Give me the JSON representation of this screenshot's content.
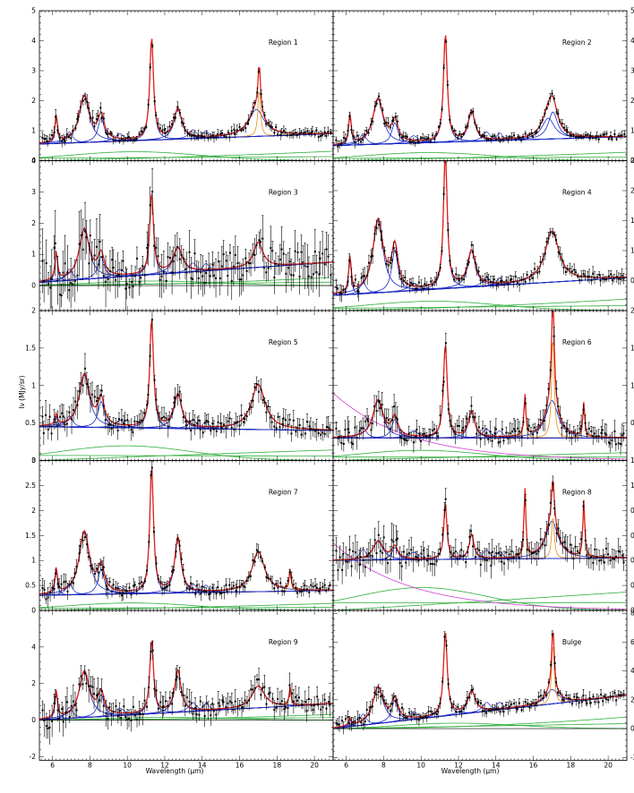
{
  "figure": {
    "xlabel": "Wavelength  (μm)",
    "ylabel": "Iν (MJy/sr)",
    "colors": {
      "data": "#000000",
      "total_fit": "#e0201b",
      "pah_features": "#1a28c8",
      "lines": "#e88a1a",
      "dust_continuum": "#2fae3a",
      "stellar": "#d23fd2"
    }
  },
  "chart_data": [
    {
      "type": "line",
      "title": "Region 1",
      "xlim": [
        5.3,
        21
      ],
      "ylim": [
        0,
        5
      ],
      "xticks": [
        6,
        8,
        10,
        12,
        14,
        16,
        18,
        20
      ],
      "yticks": [
        0,
        1,
        2,
        3,
        4,
        5
      ],
      "ytick_side": "left",
      "continuum": 0.55,
      "cont_slope": 0.35,
      "noise": 0.12,
      "features": [
        [
          6.2,
          0.9,
          0.08
        ],
        [
          7.7,
          1.55,
          0.33
        ],
        [
          8.6,
          0.8,
          0.2
        ],
        [
          11.3,
          3.4,
          0.12
        ],
        [
          12.7,
          1.0,
          0.25
        ],
        [
          16.9,
          0.9,
          0.5
        ],
        [
          17.05,
          1.6,
          0.08
        ]
      ]
    },
    {
      "type": "line",
      "title": "Region 2",
      "xlim": [
        5.3,
        21
      ],
      "ylim": [
        0,
        5
      ],
      "xticks": [
        6,
        8,
        10,
        12,
        14,
        16,
        18,
        20
      ],
      "yticks": [
        0,
        1,
        2,
        3,
        4,
        5
      ],
      "ytick_side": "right",
      "continuum": 0.5,
      "cont_slope": 0.3,
      "noise": 0.1,
      "features": [
        [
          6.2,
          1.0,
          0.08
        ],
        [
          7.7,
          1.5,
          0.33
        ],
        [
          8.6,
          0.7,
          0.2
        ],
        [
          11.3,
          3.6,
          0.12
        ],
        [
          12.7,
          1.0,
          0.22
        ],
        [
          16.8,
          0.7,
          0.4
        ],
        [
          17.05,
          0.9,
          0.3
        ]
      ]
    },
    {
      "type": "line",
      "title": "Region 3",
      "xlim": [
        5.3,
        21
      ],
      "ylim": [
        -0.8,
        4
      ],
      "xticks": [
        6,
        8,
        10,
        12,
        14,
        16,
        18,
        20
      ],
      "yticks": [
        0,
        1,
        2,
        3,
        4
      ],
      "ytick_side": "left",
      "continuum": 0.1,
      "cont_slope": 0.65,
      "noise": 0.5,
      "features": [
        [
          6.2,
          0.9,
          0.08
        ],
        [
          7.7,
          1.6,
          0.33
        ],
        [
          8.6,
          0.7,
          0.2
        ],
        [
          11.3,
          2.6,
          0.12
        ],
        [
          12.7,
          0.8,
          0.3
        ],
        [
          17.0,
          0.8,
          0.3
        ]
      ]
    },
    {
      "type": "line",
      "title": "Region 4",
      "xlim": [
        5.3,
        21
      ],
      "ylim": [
        0,
        2.5
      ],
      "xticks": [
        6,
        8,
        10,
        12,
        14,
        16,
        18,
        20
      ],
      "yticks": [
        0.5,
        1.0,
        1.5,
        2.0,
        2.5
      ],
      "ytick_side": "right",
      "continuum": 0.25,
      "cont_slope": 0.3,
      "noise": 0.08,
      "features": [
        [
          6.2,
          0.6,
          0.08
        ],
        [
          7.7,
          1.2,
          0.33
        ],
        [
          8.6,
          0.7,
          0.2
        ],
        [
          11.3,
          2.25,
          0.12
        ],
        [
          12.7,
          0.6,
          0.25
        ],
        [
          17.0,
          0.85,
          0.45
        ]
      ]
    },
    {
      "type": "line",
      "title": "Region 5",
      "xlim": [
        5.3,
        21
      ],
      "ylim": [
        0,
        2.0
      ],
      "xticks": [
        6,
        8,
        10,
        12,
        14,
        16,
        18,
        20
      ],
      "yticks": [
        0,
        0.5,
        1.0,
        1.5,
        2.0
      ],
      "ytick_side": "left",
      "continuum": 0.45,
      "cont_slope": -0.05,
      "noise": 0.1,
      "features": [
        [
          6.2,
          0.15,
          0.08
        ],
        [
          7.7,
          0.7,
          0.33
        ],
        [
          8.6,
          0.35,
          0.2
        ],
        [
          11.3,
          1.45,
          0.12
        ],
        [
          12.7,
          0.45,
          0.25
        ],
        [
          17.0,
          0.6,
          0.45
        ]
      ]
    },
    {
      "type": "line",
      "title": "Region 6",
      "xlim": [
        5.3,
        21
      ],
      "ylim": [
        0,
        2.0
      ],
      "xticks": [
        6,
        8,
        10,
        12,
        14,
        16,
        18,
        20
      ],
      "yticks": [
        0.5,
        1.0,
        1.5,
        2.0
      ],
      "ytick_side": "right",
      "continuum": 0.3,
      "cont_slope": 0.0,
      "noise": 0.1,
      "features": [
        [
          7.7,
          0.5,
          0.33
        ],
        [
          8.6,
          0.25,
          0.2
        ],
        [
          11.3,
          1.25,
          0.12
        ],
        [
          12.7,
          0.35,
          0.2
        ],
        [
          15.55,
          0.55,
          0.06
        ],
        [
          17.0,
          0.5,
          0.4
        ],
        [
          17.05,
          1.4,
          0.08
        ],
        [
          18.7,
          0.45,
          0.06
        ]
      ]
    },
    {
      "type": "line",
      "title": "Region 7",
      "xlim": [
        5.3,
        21
      ],
      "ylim": [
        0,
        3.0
      ],
      "xticks": [
        6,
        8,
        10,
        12,
        14,
        16,
        18,
        20
      ],
      "yticks": [
        0,
        0.5,
        1.0,
        1.5,
        2.0,
        2.5,
        3.0
      ],
      "ytick_side": "left",
      "continuum": 0.3,
      "cont_slope": 0.1,
      "noise": 0.1,
      "features": [
        [
          6.2,
          0.5,
          0.08
        ],
        [
          7.7,
          1.25,
          0.33
        ],
        [
          8.6,
          0.5,
          0.2
        ],
        [
          11.3,
          2.5,
          0.12
        ],
        [
          12.7,
          1.1,
          0.2
        ],
        [
          17.0,
          0.8,
          0.4
        ],
        [
          18.7,
          0.4,
          0.06
        ]
      ]
    },
    {
      "type": "line",
      "title": "Region 8",
      "xlim": [
        5.3,
        21
      ],
      "ylim": [
        0,
        1.2
      ],
      "xticks": [
        6,
        8,
        10,
        12,
        14,
        16,
        18,
        20
      ],
      "yticks": [
        0,
        0.2,
        0.4,
        0.6,
        0.8,
        1.0,
        1.2
      ],
      "ytick_side": "right",
      "continuum": 0.4,
      "cont_slope": 0.02,
      "noise": 0.07,
      "features": [
        [
          7.7,
          0.15,
          0.33
        ],
        [
          8.6,
          0.1,
          0.2
        ],
        [
          11.3,
          0.45,
          0.1
        ],
        [
          12.7,
          0.2,
          0.15
        ],
        [
          15.55,
          0.55,
          0.06
        ],
        [
          17.0,
          0.3,
          0.4
        ],
        [
          17.05,
          0.35,
          0.08
        ],
        [
          18.7,
          0.45,
          0.06
        ]
      ]
    },
    {
      "type": "line",
      "title": "Region 9",
      "xlim": [
        5.3,
        21
      ],
      "ylim": [
        -2.2,
        6
      ],
      "xticks": [
        6,
        8,
        10,
        12,
        14,
        16,
        18,
        20
      ],
      "yticks": [
        -2,
        0,
        2,
        4
      ],
      "ytick_side": "left",
      "continuum": 0.0,
      "cont_slope": 0.9,
      "noise": 0.45,
      "features": [
        [
          6.2,
          1.5,
          0.08
        ],
        [
          7.7,
          2.5,
          0.33
        ],
        [
          8.6,
          1.2,
          0.2
        ],
        [
          11.3,
          4.0,
          0.12
        ],
        [
          12.7,
          2.3,
          0.2
        ],
        [
          17.0,
          1.2,
          0.4
        ],
        [
          18.7,
          1.0,
          0.06
        ]
      ]
    },
    {
      "type": "line",
      "title": "Bulge",
      "xlim": [
        5.3,
        21
      ],
      "ylim": [
        -2.2,
        8.2
      ],
      "xticks": [
        6,
        8,
        10,
        12,
        14,
        16,
        18,
        20
      ],
      "yticks": [
        -2,
        0,
        2,
        4,
        6,
        8
      ],
      "ytick_side": "right",
      "continuum": 0.0,
      "cont_slope": 2.3,
      "noise": 0.3,
      "features": [
        [
          6.2,
          0.5,
          0.08
        ],
        [
          7.7,
          2.5,
          0.33
        ],
        [
          8.6,
          1.5,
          0.2
        ],
        [
          11.3,
          5.8,
          0.12
        ],
        [
          12.7,
          1.5,
          0.25
        ],
        [
          17.0,
          1.0,
          0.4
        ],
        [
          17.05,
          4.3,
          0.08
        ]
      ]
    }
  ]
}
